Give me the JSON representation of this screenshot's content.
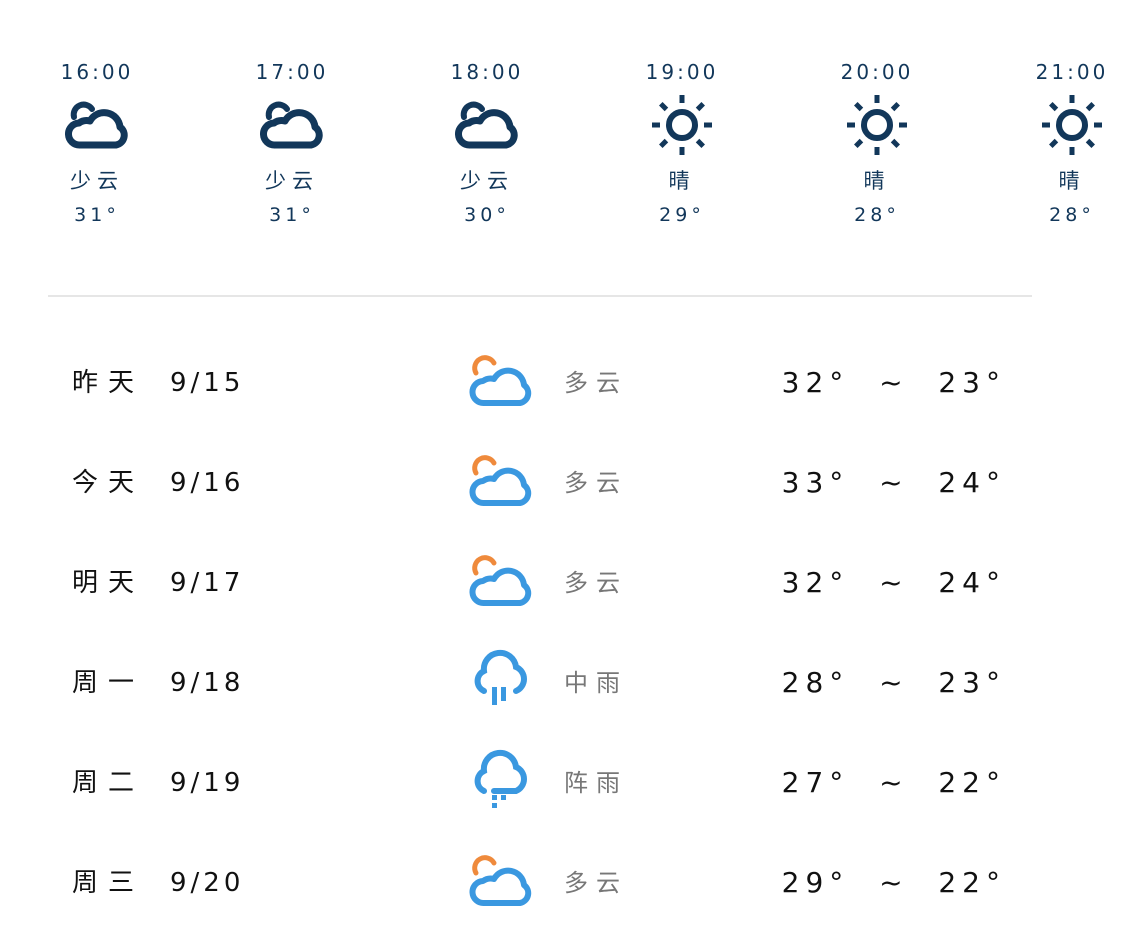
{
  "colors": {
    "hourly_icon": "#12375a",
    "daily_cloud": "#3a98e0",
    "sun_accent": "#ef8a3c"
  },
  "hourly": [
    {
      "time": "16:00",
      "icon": "partly-cloudy-icon",
      "desc": "少云",
      "temp": "31°"
    },
    {
      "time": "17:00",
      "icon": "partly-cloudy-icon",
      "desc": "少云",
      "temp": "31°"
    },
    {
      "time": "18:00",
      "icon": "partly-cloudy-icon",
      "desc": "少云",
      "temp": "30°"
    },
    {
      "time": "19:00",
      "icon": "sun-icon",
      "desc": "晴",
      "temp": "29°"
    },
    {
      "time": "20:00",
      "icon": "sun-icon",
      "desc": "晴",
      "temp": "28°"
    },
    {
      "time": "21:00",
      "icon": "sun-icon",
      "desc": "晴",
      "temp": "28°"
    }
  ],
  "daily": [
    {
      "day": "昨天",
      "date": "9/15",
      "icon": "cloudy-sun-icon",
      "cond": "多云",
      "high": "32°",
      "low": "23°",
      "sep": "~"
    },
    {
      "day": "今天",
      "date": "9/16",
      "icon": "cloudy-sun-icon",
      "cond": "多云",
      "high": "33°",
      "low": "24°",
      "sep": "~"
    },
    {
      "day": "明天",
      "date": "9/17",
      "icon": "cloudy-sun-icon",
      "cond": "多云",
      "high": "32°",
      "low": "24°",
      "sep": "~"
    },
    {
      "day": "周一",
      "date": "9/18",
      "icon": "moderate-rain-icon",
      "cond": "中雨",
      "high": "28°",
      "low": "23°",
      "sep": "~"
    },
    {
      "day": "周二",
      "date": "9/19",
      "icon": "shower-icon",
      "cond": "阵雨",
      "high": "27°",
      "low": "22°",
      "sep": "~"
    },
    {
      "day": "周三",
      "date": "9/20",
      "icon": "cloudy-sun-icon",
      "cond": "多云",
      "high": "29°",
      "low": "22°",
      "sep": "~"
    }
  ]
}
